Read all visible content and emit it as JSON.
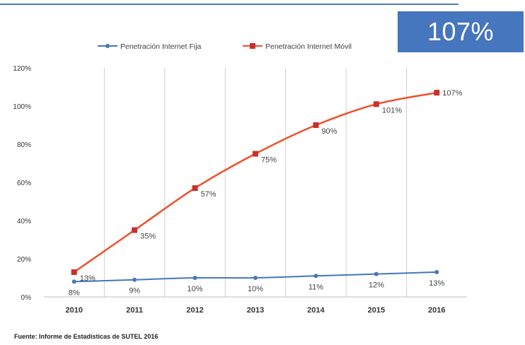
{
  "badge": {
    "value": "107%"
  },
  "source": "Fuente: Informe de Estadísticas de SUTEL 2016",
  "chart_data": {
    "type": "line",
    "categories": [
      "2010",
      "2011",
      "2012",
      "2013",
      "2014",
      "2015",
      "2016"
    ],
    "series": [
      {
        "name": "Penetración Internet Fija",
        "values": [
          8,
          9,
          10,
          10,
          11,
          12,
          13
        ],
        "labels": [
          "8%",
          "9%",
          "10%",
          "10%",
          "11%",
          "12%",
          "13%"
        ],
        "color": "#4676bd",
        "marker": "circle"
      },
      {
        "name": "Penetración Internet Móvil",
        "values": [
          13,
          35,
          57,
          75,
          90,
          101,
          107
        ],
        "labels": [
          "13%",
          "35%",
          "57%",
          "75%",
          "90%",
          "101%",
          "107%"
        ],
        "color": "#f0502a",
        "marker": "square"
      }
    ],
    "yticks": [
      "0%",
      "20%",
      "40%",
      "60%",
      "80%",
      "100%",
      "120%"
    ],
    "ylim": [
      0,
      120
    ],
    "grid": "vertical",
    "legend": "top"
  }
}
